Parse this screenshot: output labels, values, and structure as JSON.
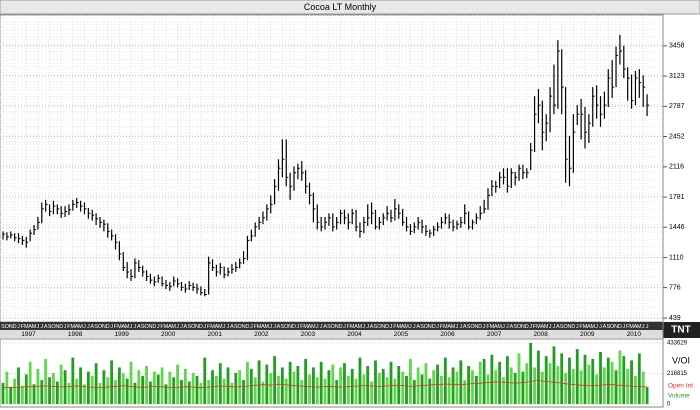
{
  "chart_data": [
    {
      "type": "ohlc",
      "title": "Cocoa LT Monthly",
      "color": "#000000",
      "categories": [
        "S",
        "O",
        "N",
        "D",
        "J",
        "F",
        "M",
        "A",
        "M",
        "J",
        "J",
        "A",
        "S",
        "O",
        "N",
        "D",
        "J",
        "F",
        "M",
        "A",
        "M",
        "J",
        "J",
        "A",
        "S",
        "O",
        "N",
        "D",
        "J",
        "F",
        "M",
        "A",
        "M",
        "J",
        "J",
        "A",
        "S",
        "O",
        "N",
        "D",
        "J",
        "F",
        "M",
        "A",
        "M",
        "J",
        "J",
        "A",
        "S",
        "O",
        "N",
        "D",
        "J",
        "F",
        "M",
        "A",
        "M",
        "J",
        "J",
        "A",
        "S",
        "O",
        "N",
        "D",
        "J",
        "F",
        "M",
        "A",
        "M",
        "J",
        "J",
        "A",
        "S",
        "O",
        "N",
        "D",
        "J",
        "F",
        "M",
        "A",
        "M",
        "J",
        "J",
        "A",
        "S",
        "O",
        "N",
        "D",
        "J",
        "F",
        "M",
        "A",
        "M",
        "J",
        "J",
        "A",
        "S",
        "O",
        "N",
        "D",
        "J",
        "F",
        "M",
        "A",
        "M",
        "J",
        "J",
        "A",
        "S",
        "O",
        "N",
        "D",
        "J",
        "F",
        "M",
        "A",
        "M",
        "J",
        "J",
        "A",
        "S",
        "O",
        "N",
        "D",
        "J",
        "F",
        "M",
        "A",
        "M",
        "J",
        "J",
        "A",
        "S",
        "O",
        "N",
        "D",
        "J",
        "F",
        "M",
        "A",
        "M",
        "J",
        "J",
        "A",
        "S",
        "O",
        "N",
        "D",
        "J",
        "F",
        "M",
        "A",
        "M",
        "J",
        "J",
        "A",
        "S",
        "O",
        "N",
        "D",
        "J",
        "F",
        "M",
        "A",
        "M",
        "J",
        "J"
      ],
      "years": [
        1997,
        1998,
        1999,
        2000,
        2001,
        2002,
        2003,
        2004,
        2005,
        2006,
        2007,
        2008,
        2009,
        2010
      ],
      "close": [
        1370,
        1340,
        1360,
        1330,
        1320,
        1300,
        1280,
        1380,
        1420,
        1500,
        1650,
        1700,
        1620,
        1680,
        1650,
        1600,
        1620,
        1640,
        1700,
        1720,
        1680,
        1650,
        1600,
        1580,
        1540,
        1500,
        1480,
        1400,
        1350,
        1280,
        1150,
        1000,
        950,
        900,
        1050,
        1000,
        950,
        900,
        860,
        840,
        880,
        820,
        800,
        790,
        850,
        820,
        780,
        760,
        800,
        780,
        760,
        720,
        700,
        1050,
        1000,
        950,
        1000,
        920,
        950,
        980,
        1000,
        1050,
        1100,
        1300,
        1350,
        1450,
        1500,
        1550,
        1650,
        1700,
        1900,
        2100,
        2200,
        2000,
        1900,
        2050,
        2100,
        2050,
        1900,
        1800,
        1650,
        1500,
        1450,
        1500,
        1550,
        1450,
        1500,
        1600,
        1550,
        1500,
        1600,
        1450,
        1400,
        1500,
        1550,
        1600,
        1450,
        1500,
        1550,
        1600,
        1550,
        1650,
        1600,
        1500,
        1450,
        1400,
        1450,
        1500,
        1450,
        1400,
        1380,
        1420,
        1450,
        1500,
        1550,
        1500,
        1450,
        1480,
        1500,
        1600,
        1450,
        1500,
        1550,
        1600,
        1650,
        1800,
        1900,
        1900,
        2000,
        2000,
        1900,
        2050,
        2000,
        2100,
        2050,
        2050,
        2300,
        2700,
        2800,
        2500,
        2600,
        2900,
        2800,
        3400,
        3000,
        2200,
        2100,
        2500,
        2700,
        2700,
        2500,
        2600,
        2900,
        2800,
        2700,
        2800,
        3100,
        3000,
        3350,
        3400,
        3200,
        3100,
        2850,
        3100,
        3050,
        3000,
        2800
      ],
      "high": [
        1400,
        1390,
        1400,
        1380,
        1380,
        1350,
        1340,
        1420,
        1470,
        1560,
        1720,
        1750,
        1700,
        1740,
        1700,
        1680,
        1680,
        1700,
        1750,
        1770,
        1740,
        1720,
        1660,
        1640,
        1600,
        1560,
        1530,
        1490,
        1420,
        1370,
        1290,
        1170,
        1060,
        980,
        1100,
        1080,
        1020,
        970,
        930,
        900,
        920,
        900,
        860,
        840,
        900,
        880,
        840,
        820,
        850,
        830,
        820,
        790,
        760,
        1120,
        1090,
        1030,
        1050,
        1010,
        1000,
        1040,
        1060,
        1100,
        1180,
        1350,
        1420,
        1500,
        1560,
        1620,
        1700,
        1800,
        1980,
        2200,
        2420,
        2420,
        2050,
        2120,
        2150,
        2180,
        2080,
        1940,
        1830,
        1700,
        1560,
        1560,
        1600,
        1600,
        1560,
        1640,
        1640,
        1600,
        1650,
        1640,
        1500,
        1560,
        1700,
        1720,
        1640,
        1560,
        1600,
        1680,
        1640,
        1760,
        1700,
        1650,
        1560,
        1480,
        1500,
        1560,
        1530,
        1470,
        1420,
        1460,
        1500,
        1560,
        1600,
        1590,
        1530,
        1520,
        1560,
        1700,
        1620,
        1530,
        1600,
        1680,
        1750,
        1880,
        1970,
        1960,
        2060,
        2100,
        2100,
        2100,
        2060,
        2140,
        2140,
        2100,
        2380,
        2900,
        2980,
        2850,
        2700,
        3000,
        3250,
        3520,
        3420,
        3000,
        2460,
        2700,
        2800,
        2870,
        2780,
        2700,
        3000,
        3020,
        2900,
        2950,
        3200,
        3300,
        3450,
        3580,
        3460,
        3220,
        3140,
        3180,
        3200,
        3130,
        2920
      ],
      "low": [
        1310,
        1300,
        1320,
        1290,
        1270,
        1250,
        1220,
        1290,
        1360,
        1420,
        1490,
        1620,
        1570,
        1590,
        1590,
        1550,
        1560,
        1580,
        1630,
        1660,
        1620,
        1590,
        1540,
        1520,
        1470,
        1440,
        1400,
        1330,
        1300,
        1200,
        1080,
        960,
        880,
        850,
        880,
        950,
        900,
        850,
        820,
        790,
        830,
        790,
        760,
        740,
        790,
        780,
        740,
        720,
        750,
        740,
        710,
        690,
        680,
        700,
        960,
        900,
        920,
        880,
        900,
        930,
        950,
        990,
        1040,
        1080,
        1290,
        1340,
        1420,
        1480,
        1520,
        1600,
        1700,
        1850,
        2000,
        1900,
        1750,
        1850,
        1980,
        1960,
        1820,
        1700,
        1500,
        1420,
        1400,
        1420,
        1460,
        1400,
        1420,
        1480,
        1480,
        1420,
        1480,
        1400,
        1330,
        1380,
        1460,
        1480,
        1420,
        1420,
        1470,
        1520,
        1500,
        1520,
        1540,
        1460,
        1400,
        1360,
        1380,
        1420,
        1380,
        1350,
        1330,
        1350,
        1400,
        1430,
        1480,
        1430,
        1400,
        1420,
        1440,
        1480,
        1420,
        1420,
        1480,
        1530,
        1600,
        1640,
        1790,
        1830,
        1880,
        1920,
        1830,
        1880,
        1910,
        1960,
        1980,
        1990,
        2080,
        2280,
        2600,
        2300,
        2400,
        2500,
        2700,
        2760,
        2700,
        1940,
        1900,
        2050,
        2580,
        2420,
        2320,
        2380,
        2560,
        2650,
        2560,
        2650,
        2780,
        2880,
        3000,
        3250,
        3100,
        2850,
        2760,
        2800,
        2880,
        2780,
        2680
      ],
      "ylim": [
        395,
        3800
      ],
      "yticks": [
        439,
        776,
        1110,
        1446,
        1781,
        2116,
        2452,
        2787,
        3123,
        3458
      ],
      "grid": true
    },
    {
      "type": "volume",
      "legend_title": "V/OI",
      "ylim": [
        0,
        455000
      ],
      "yticks": [
        0,
        216815,
        433629
      ],
      "series": [
        {
          "name": "Volume",
          "color": "#1f9e1f",
          "light_color": "#5fd84a",
          "values": [
            150000,
            230000,
            120000,
            180000,
            260000,
            130000,
            210000,
            300000,
            140000,
            250000,
            170000,
            320000,
            190000,
            220000,
            160000,
            280000,
            240000,
            150000,
            330000,
            180000,
            260000,
            140000,
            230000,
            200000,
            290000,
            150000,
            240000,
            190000,
            310000,
            170000,
            260000,
            220000,
            180000,
            300000,
            150000,
            240000,
            200000,
            270000,
            160000,
            230000,
            210000,
            260000,
            140000,
            230000,
            190000,
            280000,
            170000,
            250000,
            160000,
            220000,
            200000,
            150000,
            330000,
            170000,
            240000,
            200000,
            290000,
            180000,
            260000,
            150000,
            220000,
            240000,
            170000,
            300000,
            250000,
            190000,
            310000,
            160000,
            280000,
            220000,
            340000,
            200000,
            260000,
            180000,
            300000,
            230000,
            270000,
            170000,
            320000,
            210000,
            260000,
            190000,
            300000,
            180000,
            240000,
            280000,
            170000,
            260000,
            290000,
            200000,
            250000,
            180000,
            330000,
            210000,
            270000,
            160000,
            310000,
            220000,
            250000,
            190000,
            300000,
            180000,
            270000,
            230000,
            200000,
            320000,
            170000,
            260000,
            210000,
            290000,
            180000,
            240000,
            280000,
            200000,
            330000,
            190000,
            260000,
            230000,
            310000,
            170000,
            270000,
            240000,
            200000,
            300000,
            320000,
            210000,
            350000,
            240000,
            300000,
            190000,
            340000,
            260000,
            220000,
            360000,
            230000,
            290000,
            433629,
            260000,
            380000,
            230000,
            340000,
            290000,
            410000,
            270000,
            360000,
            220000,
            330000,
            250000,
            390000,
            240000,
            350000,
            280000,
            320000,
            210000,
            370000,
            260000,
            330000,
            300000,
            240000,
            380000,
            340000,
            250000,
            310000,
            200000,
            360000,
            230000,
            120000
          ]
        },
        {
          "name": "Open Int",
          "color": "#e03020",
          "values": [
            115000,
            118000,
            120000,
            117000,
            119000,
            121000,
            124000,
            122000,
            125000,
            127000,
            126000,
            129000,
            127000,
            125000,
            123000,
            121000,
            122000,
            124000,
            126000,
            128000,
            126000,
            123000,
            121000,
            120000,
            118000,
            117000,
            119000,
            121000,
            123000,
            126000,
            128000,
            130000,
            127000,
            124000,
            122000,
            120000,
            119000,
            121000,
            123000,
            125000,
            124000,
            122000,
            120000,
            118000,
            117000,
            119000,
            121000,
            123000,
            122000,
            120000,
            118000,
            116000,
            118000,
            121000,
            124000,
            126000,
            128000,
            127000,
            125000,
            123000,
            121000,
            122000,
            124000,
            127000,
            130000,
            133000,
            135000,
            137000,
            136000,
            134000,
            138000,
            141000,
            139000,
            136000,
            133000,
            131000,
            129000,
            127000,
            125000,
            123000,
            121000,
            120000,
            122000,
            124000,
            126000,
            124000,
            122000,
            120000,
            121000,
            123000,
            125000,
            127000,
            129000,
            131000,
            130000,
            128000,
            126000,
            125000,
            127000,
            129000,
            131000,
            133000,
            132000,
            130000,
            128000,
            126000,
            127000,
            129000,
            131000,
            133000,
            135000,
            137000,
            138000,
            140000,
            142000,
            141000,
            139000,
            137000,
            138000,
            140000,
            142000,
            144000,
            146000,
            148000,
            150000,
            152000,
            155000,
            157000,
            156000,
            154000,
            152000,
            150000,
            148000,
            150000,
            153000,
            156000,
            160000,
            164000,
            167000,
            163000,
            160000,
            157000,
            155000,
            152000,
            148000,
            144000,
            140000,
            138000,
            136000,
            134000,
            133000,
            131000,
            130000,
            132000,
            134000,
            136000,
            138000,
            137000,
            135000,
            133000,
            131000,
            129000,
            127000,
            125000,
            124000,
            122000,
            120000
          ]
        }
      ]
    }
  ],
  "logo": "TNT"
}
